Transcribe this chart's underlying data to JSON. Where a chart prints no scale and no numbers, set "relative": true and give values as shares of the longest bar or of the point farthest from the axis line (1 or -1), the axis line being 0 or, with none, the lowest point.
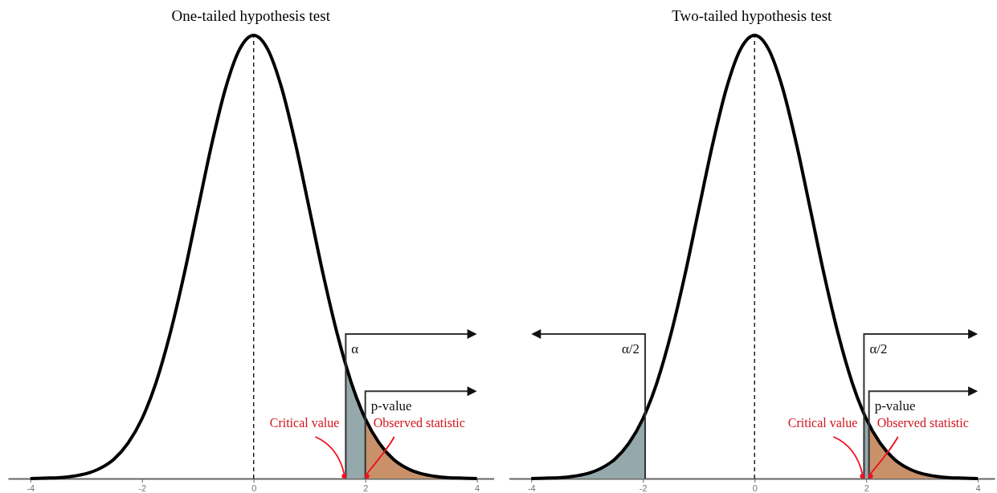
{
  "chart_data": [
    {
      "type": "line",
      "title": "One-tailed hypothesis test",
      "relative": true,
      "xlim": [
        -4.4,
        4.3
      ],
      "xticks": [
        -4,
        -2,
        0,
        2,
        4
      ],
      "grid": false,
      "marker": "none",
      "series": [
        {
          "type": "area",
          "color": "#95a8ab",
          "x": [
            1.65,
            1.75,
            2.0
          ],
          "values": [
            0.256,
            0.216,
            0.135
          ]
        },
        {
          "type": "area",
          "color": "#c8916a",
          "x": [
            2.0,
            2.25,
            2.5,
            2.75,
            3.0,
            3.25,
            3.5,
            3.75,
            4.0
          ],
          "values": [
            0.135,
            0.08,
            0.044,
            0.023,
            0.011,
            0.005,
            0.002,
            0.001,
            0.0
          ]
        },
        {
          "type": "line",
          "color": "#000000",
          "x": [
            -4,
            -3.75,
            -3.5,
            -3.25,
            -3,
            -2.75,
            -2.5,
            -2.25,
            -2,
            -1.75,
            -1.5,
            -1.25,
            -1,
            -0.75,
            -0.5,
            -0.25,
            0,
            0.25,
            0.5,
            0.75,
            1,
            1.25,
            1.5,
            1.75,
            2,
            2.25,
            2.5,
            2.75,
            3,
            3.25,
            3.5,
            3.75,
            4
          ],
          "values": [
            0.0,
            0.001,
            0.002,
            0.005,
            0.011,
            0.023,
            0.044,
            0.08,
            0.135,
            0.216,
            0.325,
            0.458,
            0.607,
            0.755,
            0.882,
            0.969,
            1.0,
            0.969,
            0.882,
            0.755,
            0.607,
            0.458,
            0.325,
            0.216,
            0.135,
            0.08,
            0.044,
            0.023,
            0.011,
            0.005,
            0.002,
            0.001,
            0.0
          ]
        }
      ],
      "ref_lines": [
        {
          "axis": "x",
          "value": 0,
          "line_style": "dashed",
          "color": "#000000"
        }
      ],
      "annotations": [
        "α",
        "p-value",
        {
          "text": "Critical value",
          "x": 1.65,
          "y": 0
        },
        {
          "text": "Observed statistic",
          "x": 2.0,
          "y": 0
        }
      ]
    },
    {
      "type": "line",
      "title": "Two-tailed hypothesis test",
      "relative": true,
      "xlim": [
        -4.4,
        4.3
      ],
      "xticks": [
        -4,
        -2,
        0,
        2,
        4
      ],
      "grid": false,
      "marker": "none",
      "series": [
        {
          "type": "area",
          "color": "#95a8ab",
          "x": [
            -4,
            -3.75,
            -3.5,
            -3.25,
            -3,
            -2.75,
            -2.5,
            -2.25,
            -1.96
          ],
          "values": [
            0.0,
            0.001,
            0.002,
            0.005,
            0.011,
            0.023,
            0.044,
            0.08,
            0.146
          ]
        },
        {
          "type": "area",
          "color": "#95a8ab",
          "x": [
            1.96,
            2.05
          ],
          "values": [
            0.146,
            0.122
          ]
        },
        {
          "type": "area",
          "color": "#c8916a",
          "x": [
            2.05,
            2.25,
            2.5,
            2.75,
            3.0,
            3.25,
            3.5,
            3.75,
            4.0
          ],
          "values": [
            0.122,
            0.08,
            0.044,
            0.023,
            0.011,
            0.005,
            0.002,
            0.001,
            0.0
          ]
        },
        {
          "type": "line",
          "color": "#000000",
          "x": [
            -4,
            -3.75,
            -3.5,
            -3.25,
            -3,
            -2.75,
            -2.5,
            -2.25,
            -2,
            -1.75,
            -1.5,
            -1.25,
            -1,
            -0.75,
            -0.5,
            -0.25,
            0,
            0.25,
            0.5,
            0.75,
            1,
            1.25,
            1.5,
            1.75,
            2,
            2.25,
            2.5,
            2.75,
            3,
            3.25,
            3.5,
            3.75,
            4
          ],
          "values": [
            0.0,
            0.001,
            0.002,
            0.005,
            0.011,
            0.023,
            0.044,
            0.08,
            0.135,
            0.216,
            0.325,
            0.458,
            0.607,
            0.755,
            0.882,
            0.969,
            1.0,
            0.969,
            0.882,
            0.755,
            0.607,
            0.458,
            0.325,
            0.216,
            0.135,
            0.08,
            0.044,
            0.023,
            0.011,
            0.005,
            0.002,
            0.001,
            0.0
          ]
        }
      ],
      "ref_lines": [
        {
          "axis": "x",
          "value": 0,
          "line_style": "dashed",
          "color": "#000000"
        }
      ],
      "annotations": [
        "α/2",
        "α/2",
        "p-value",
        {
          "text": "Critical value",
          "x": 1.96,
          "y": 0
        },
        {
          "text": "Observed statistic",
          "x": 2.05,
          "y": 0
        }
      ]
    }
  ]
}
